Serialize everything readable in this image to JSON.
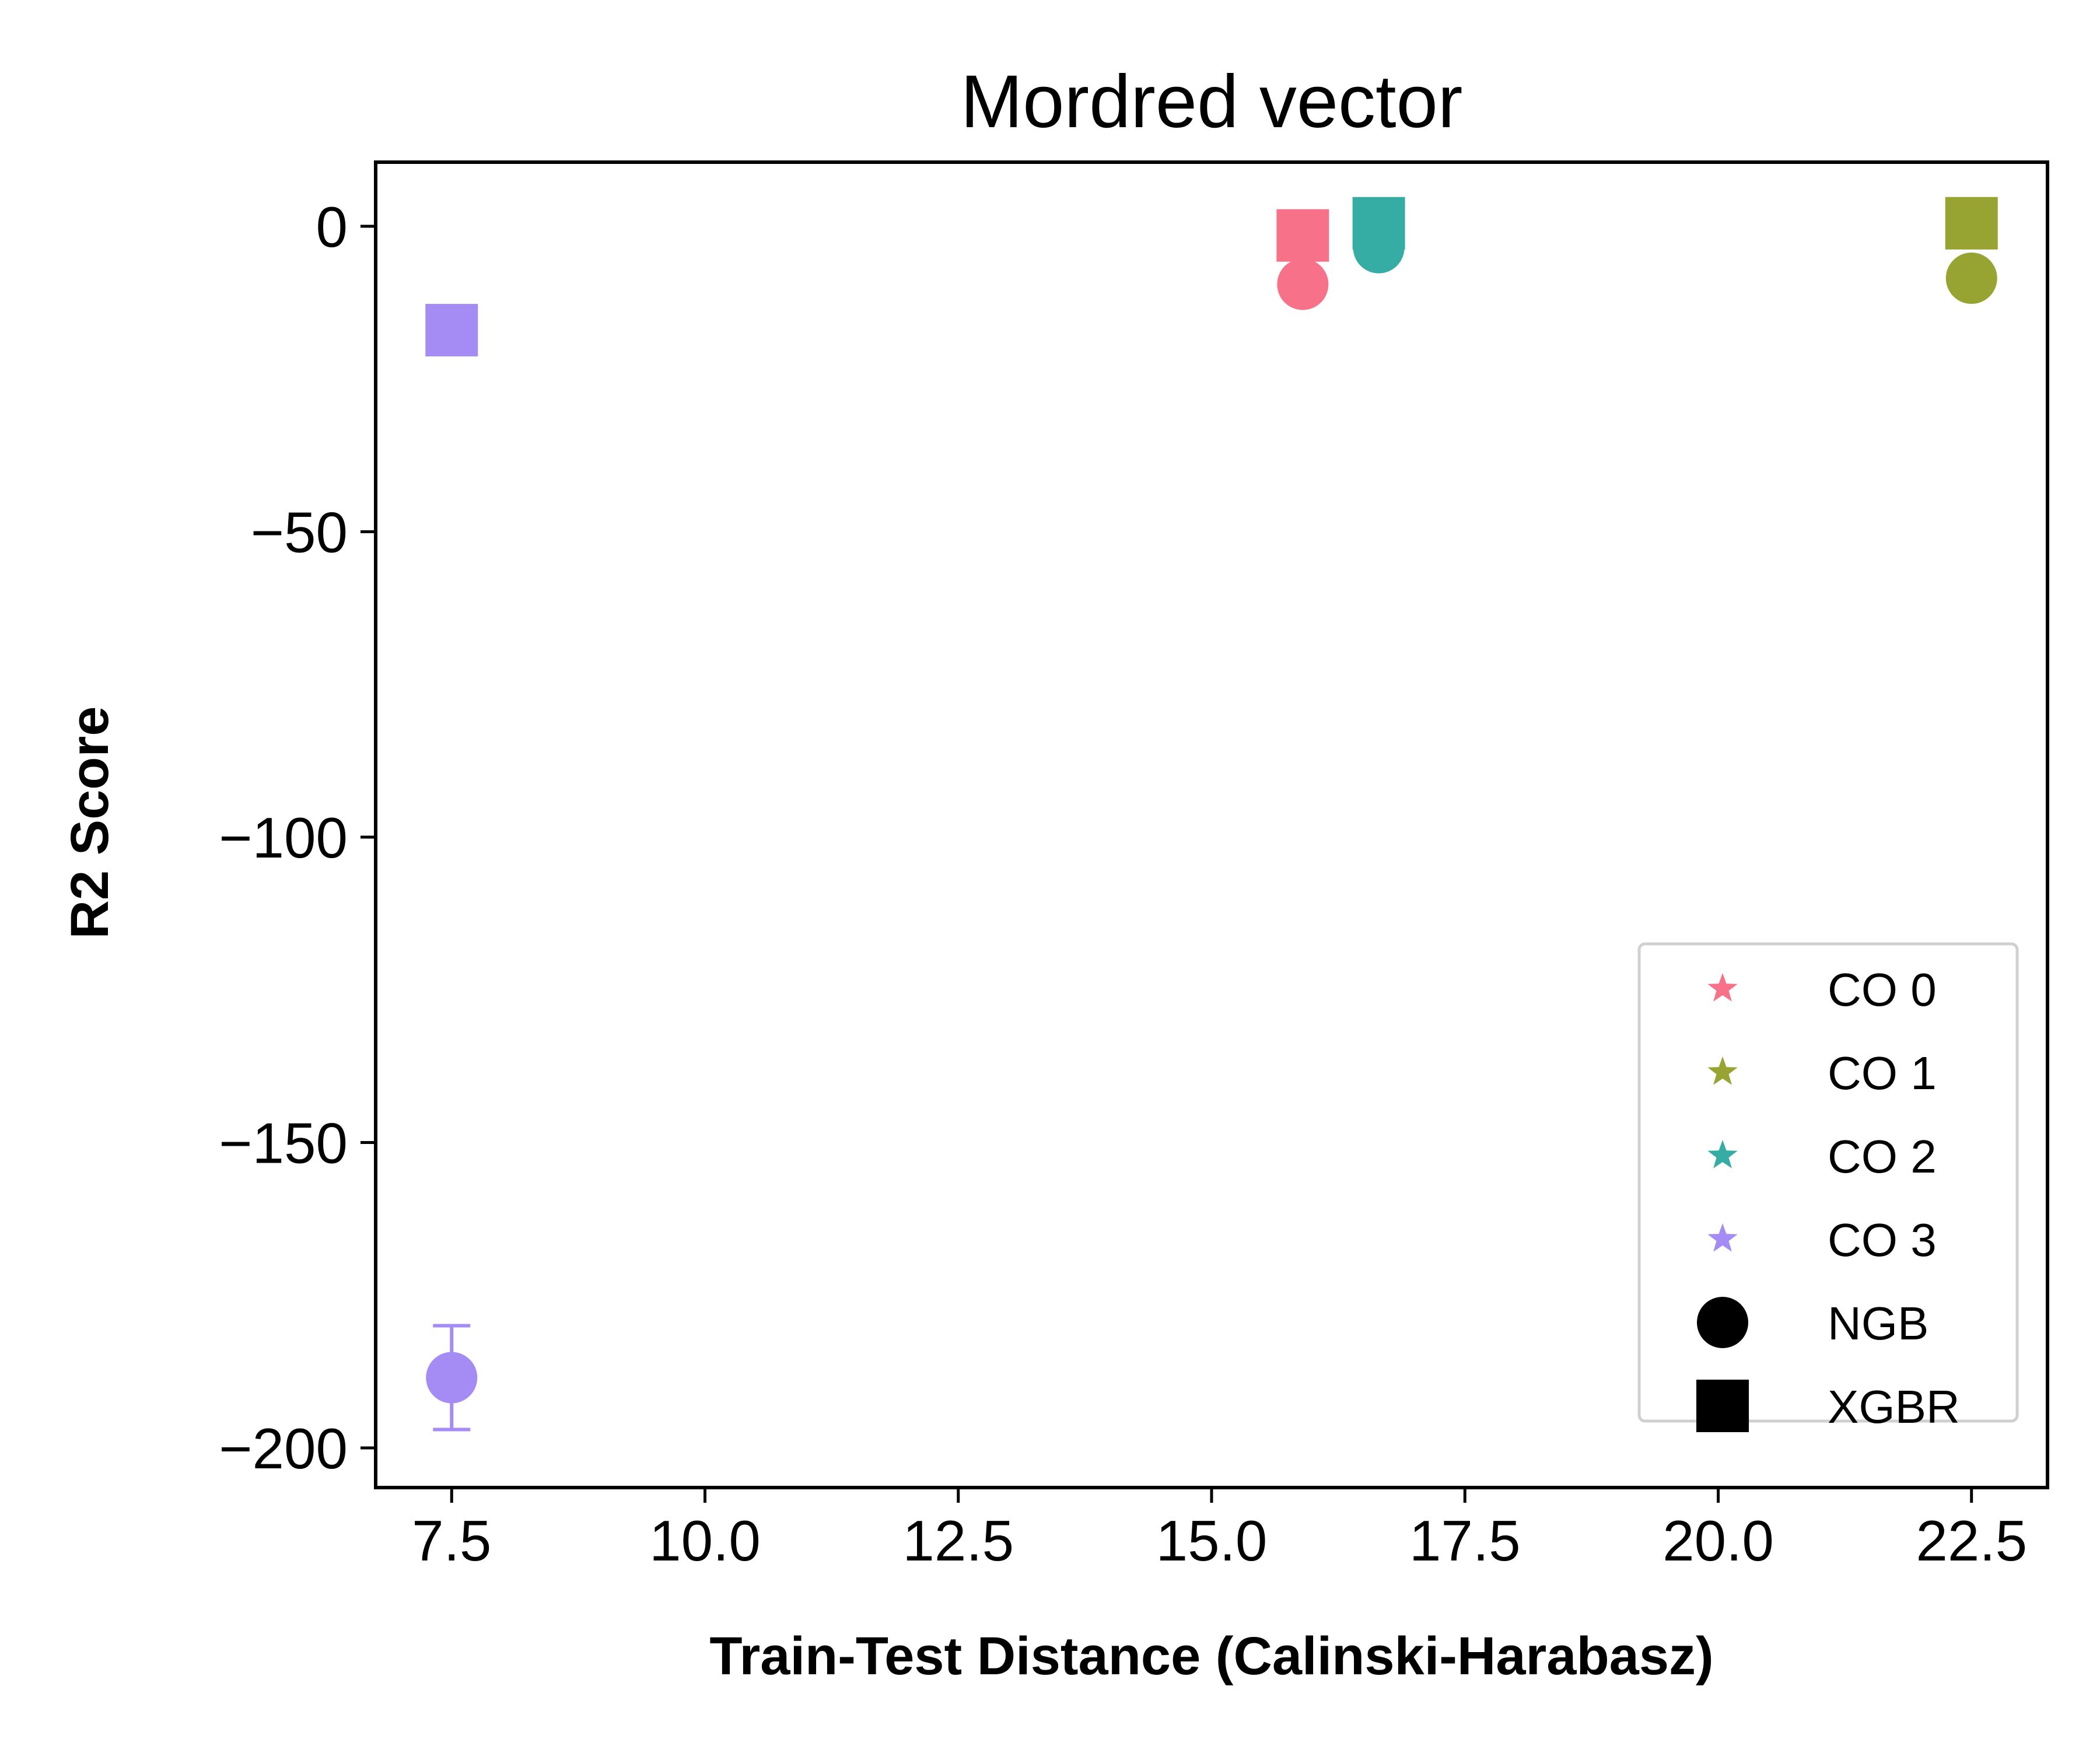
{
  "chart_data": {
    "type": "scatter",
    "title": "Mordred vector",
    "xlabel": "Train-Test Distance (Calinski-Harabasz)",
    "ylabel": "R2 Score",
    "xlim": [
      6.75,
      23.25
    ],
    "ylim": [
      -206.5,
      10.5
    ],
    "xticks": [
      7.5,
      10.0,
      12.5,
      15.0,
      17.5,
      20.0,
      22.5
    ],
    "xtick_labels": [
      "7.5",
      "10.0",
      "12.5",
      "15.0",
      "17.5",
      "20.0",
      "22.5"
    ],
    "yticks": [
      0,
      -50,
      -100,
      -150,
      -200
    ],
    "ytick_labels": [
      "0",
      "−50",
      "−100",
      "−150",
      "−200"
    ],
    "grid": false,
    "legend_position": "lower right",
    "groups": [
      {
        "name": "CO 0",
        "color": "#f77189"
      },
      {
        "name": "CO 1",
        "color": "#97a431"
      },
      {
        "name": "CO 2",
        "color": "#36ada4"
      },
      {
        "name": "CO 3",
        "color": "#a48cf4"
      }
    ],
    "models": [
      {
        "name": "NGB",
        "marker": "circle"
      },
      {
        "name": "XGBR",
        "marker": "square"
      }
    ],
    "points": [
      {
        "group": "CO 0",
        "model": "XGBR",
        "x": 15.9,
        "y": -1.5,
        "err": 2.5
      },
      {
        "group": "CO 0",
        "model": "NGB",
        "x": 15.9,
        "y": -9.5,
        "err": 0
      },
      {
        "group": "CO 1",
        "model": "XGBR",
        "x": 22.5,
        "y": 0.5,
        "err": 0
      },
      {
        "group": "CO 1",
        "model": "NGB",
        "x": 22.5,
        "y": -8.5,
        "err": 0
      },
      {
        "group": "CO 2",
        "model": "XGBR",
        "x": 16.65,
        "y": 0.5,
        "err": 1.5
      },
      {
        "group": "CO 2",
        "model": "NGB",
        "x": 16.65,
        "y": -3.5,
        "err": 0
      },
      {
        "group": "CO 3",
        "model": "XGBR",
        "x": 7.5,
        "y": -17.0,
        "err": 0
      },
      {
        "group": "CO 3",
        "model": "NGB",
        "x": 7.5,
        "y": -188.5,
        "err": 8.5
      }
    ]
  }
}
